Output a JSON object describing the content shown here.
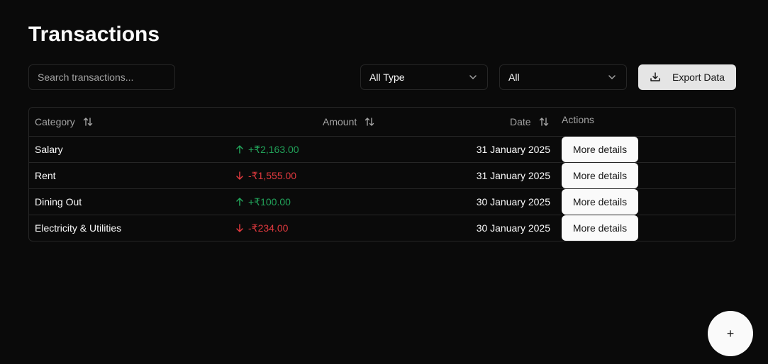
{
  "page": {
    "title": "Transactions"
  },
  "toolbar": {
    "search_placeholder": "Search transactions...",
    "type_select": {
      "value": "All Type",
      "icon": "chevron-down-icon"
    },
    "filter_select": {
      "value": "All",
      "icon": "chevron-down-icon"
    },
    "export_label": "Export Data",
    "export_icon": "download-icon"
  },
  "table": {
    "columns": {
      "category": "Category",
      "amount": "Amount",
      "date": "Date",
      "actions": "Actions"
    },
    "rows": [
      {
        "category": "Salary",
        "amount": "+₹2,163.00",
        "direction": "up",
        "date": "31 January 2025",
        "action": "More details"
      },
      {
        "category": "Rent",
        "amount": "-₹1,555.00",
        "direction": "down",
        "date": "31 January 2025",
        "action": "More details"
      },
      {
        "category": "Dining Out",
        "amount": "+₹100.00",
        "direction": "up",
        "date": "30 January 2025",
        "action": "More details"
      },
      {
        "category": "Electricity & Utilities",
        "amount": "-₹234.00",
        "direction": "down",
        "date": "30 January 2025",
        "action": "More details"
      }
    ]
  },
  "fab": {
    "label": "+"
  },
  "colors": {
    "background": "#0a0a0a",
    "positive": "#22a35a",
    "negative": "#e0393e",
    "border": "#262626"
  }
}
